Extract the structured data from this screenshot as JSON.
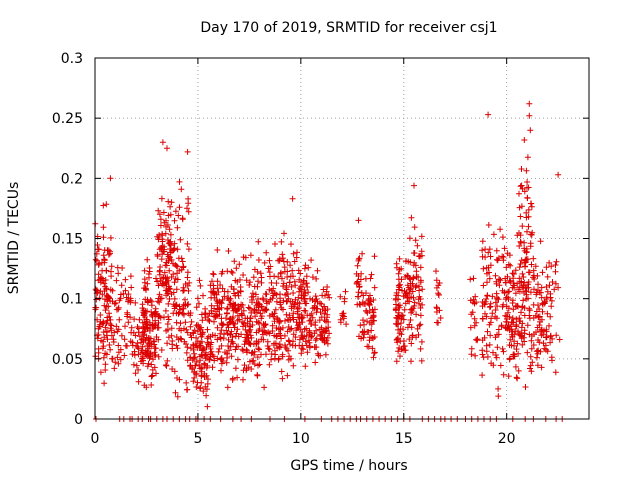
{
  "chart_data": {
    "type": "scatter",
    "title": "Day 170 of 2019, SRMTID for receiver csj1",
    "xlabel": "GPS time / hours",
    "ylabel": "SRMTID / TECUs",
    "xlim": [
      0,
      24
    ],
    "ylim": [
      0,
      0.3
    ],
    "xticks": [
      0,
      5,
      10,
      15,
      20
    ],
    "yticks": [
      0,
      0.05,
      0.1,
      0.15,
      0.2,
      0.25,
      0.3
    ],
    "xtick_labels": [
      "0",
      "5",
      "10",
      "15",
      "20"
    ],
    "ytick_labels": [
      "0",
      "0.05",
      "0.1",
      "0.15",
      "0.2",
      "0.25",
      "0.3"
    ],
    "grid": true,
    "legend": "none",
    "marker": "+",
    "series": [
      {
        "name": "SRMTID",
        "color": "#dd0000",
        "clusters": [
          {
            "x0": 0.0,
            "x1": 0.8,
            "n": 120,
            "ymin": 0.01,
            "ymax": 0.2
          },
          {
            "x0": 0.8,
            "x1": 1.8,
            "n": 60,
            "ymin": 0.03,
            "ymax": 0.15
          },
          {
            "x0": 1.8,
            "x1": 2.3,
            "n": 30,
            "ymin": 0.02,
            "ymax": 0.11
          },
          {
            "x0": 2.3,
            "x1": 3.0,
            "n": 130,
            "ymin": 0.01,
            "ymax": 0.15
          },
          {
            "x0": 3.0,
            "x1": 3.7,
            "n": 120,
            "ymin": 0.02,
            "ymax": 0.23
          },
          {
            "x0": 3.7,
            "x1": 4.6,
            "n": 110,
            "ymin": 0.005,
            "ymax": 0.22
          },
          {
            "x0": 4.6,
            "x1": 5.6,
            "n": 120,
            "ymin": 0.0,
            "ymax": 0.13
          },
          {
            "x0": 5.6,
            "x1": 6.6,
            "n": 120,
            "ymin": 0.02,
            "ymax": 0.16
          },
          {
            "x0": 6.6,
            "x1": 7.6,
            "n": 120,
            "ymin": 0.02,
            "ymax": 0.15
          },
          {
            "x0": 7.6,
            "x1": 8.6,
            "n": 110,
            "ymin": 0.02,
            "ymax": 0.17
          },
          {
            "x0": 8.6,
            "x1": 9.5,
            "n": 110,
            "ymin": 0.02,
            "ymax": 0.18
          },
          {
            "x0": 9.5,
            "x1": 10.5,
            "n": 120,
            "ymin": 0.03,
            "ymax": 0.16
          },
          {
            "x0": 10.5,
            "x1": 11.4,
            "n": 80,
            "ymin": 0.04,
            "ymax": 0.13
          },
          {
            "x0": 11.9,
            "x1": 12.2,
            "n": 12,
            "ymin": 0.07,
            "ymax": 0.11
          },
          {
            "x0": 12.7,
            "x1": 13.0,
            "n": 25,
            "ymin": 0.05,
            "ymax": 0.165
          },
          {
            "x0": 13.0,
            "x1": 13.6,
            "n": 60,
            "ymin": 0.03,
            "ymax": 0.15
          },
          {
            "x0": 14.6,
            "x1": 15.1,
            "n": 70,
            "ymin": 0.04,
            "ymax": 0.15
          },
          {
            "x0": 15.1,
            "x1": 15.9,
            "n": 90,
            "ymin": 0.03,
            "ymax": 0.195
          },
          {
            "x0": 16.5,
            "x1": 16.8,
            "n": 15,
            "ymin": 0.06,
            "ymax": 0.145
          },
          {
            "x0": 18.2,
            "x1": 18.6,
            "n": 20,
            "ymin": 0.02,
            "ymax": 0.16
          },
          {
            "x0": 18.8,
            "x1": 20.0,
            "n": 110,
            "ymin": 0.01,
            "ymax": 0.2
          },
          {
            "x0": 20.0,
            "x1": 20.6,
            "n": 80,
            "ymin": 0.01,
            "ymax": 0.17
          },
          {
            "x0": 20.6,
            "x1": 21.3,
            "n": 120,
            "ymin": 0.01,
            "ymax": 0.26
          },
          {
            "x0": 21.3,
            "x1": 22.0,
            "n": 70,
            "ymin": 0.02,
            "ymax": 0.16
          },
          {
            "x0": 22.0,
            "x1": 22.6,
            "n": 25,
            "ymin": 0.02,
            "ymax": 0.2
          }
        ],
        "extra_points": [
          {
            "x": 19.1,
            "y": 0.253
          },
          {
            "x": 21.1,
            "y": 0.262
          },
          {
            "x": 21.1,
            "y": 0.252
          },
          {
            "x": 21.15,
            "y": 0.24
          },
          {
            "x": 3.3,
            "y": 0.23
          },
          {
            "x": 3.5,
            "y": 0.225
          },
          {
            "x": 4.5,
            "y": 0.222
          },
          {
            "x": 0.75,
            "y": 0.2
          },
          {
            "x": 15.5,
            "y": 0.194
          },
          {
            "x": 22.5,
            "y": 0.203
          },
          {
            "x": 9.6,
            "y": 0.183
          },
          {
            "x": 12.8,
            "y": 0.165
          }
        ],
        "zero_points": [
          0.05,
          1.2,
          1.4,
          1.7,
          1.8,
          2.1,
          2.3,
          2.6,
          2.7,
          3.0,
          3.3,
          3.5,
          3.8,
          4.1,
          4.4,
          4.6,
          4.9,
          5.0,
          5.3,
          5.6,
          6.1,
          6.7,
          7.1,
          7.6,
          8.5,
          9.2,
          10.2,
          11.0,
          11.5,
          11.8,
          12.1,
          12.4,
          12.7,
          12.9,
          13.2,
          13.5,
          13.8,
          14.1,
          14.4,
          14.7,
          15.0,
          15.3,
          15.9,
          16.2,
          16.5,
          16.8,
          17.0,
          17.3,
          17.6,
          18.0,
          18.3,
          18.6,
          18.9,
          19.2,
          19.5,
          20.3,
          20.9,
          21.3,
          21.9,
          22.4,
          22.7
        ]
      }
    ]
  }
}
